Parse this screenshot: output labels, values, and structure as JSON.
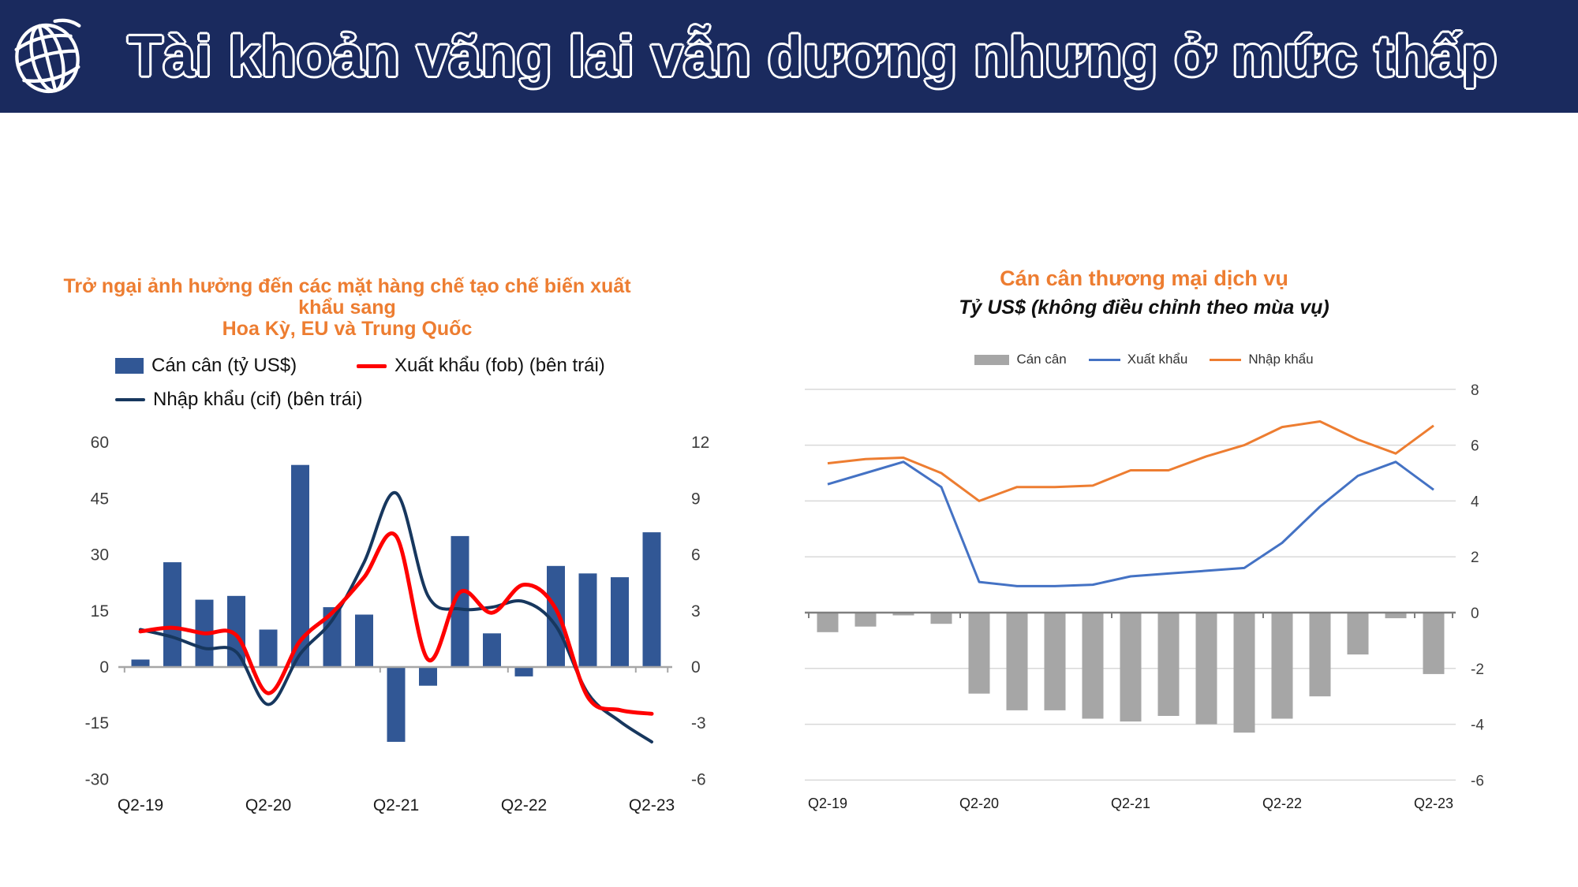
{
  "colors": {
    "banner_bg": "#1a2a5e",
    "title_orange": "#ed7d31",
    "axis_text": "#3d3d3d",
    "axis_line_left_chart": "#a6a6a6",
    "axis_line_right_chart": "#7f7f7f",
    "gridline": "#d9d9d9"
  },
  "header": {
    "title": "Tài khoản vãng lai vẫn dương nhưng ở mức thấp",
    "logo": "world-bank-globe-icon"
  },
  "chart_data": [
    {
      "id": "goods-trade",
      "type": "combo bar+smooth-line",
      "title_lines": [
        "Trở ngại ảnh hưởng đến các mặt hàng chế tạo chế biến xuất khẩu sang",
        "Hoa Kỳ, EU và Trung Quốc"
      ],
      "categories": [
        "Q2-19",
        "Q3-19",
        "Q4-19",
        "Q1-20",
        "Q2-20",
        "Q3-20",
        "Q4-20",
        "Q1-21",
        "Q2-21",
        "Q3-21",
        "Q4-21",
        "Q1-22",
        "Q2-22",
        "Q3-22",
        "Q4-22",
        "Q1-23",
        "Q2-23"
      ],
      "x_tick_labels": [
        "Q2-19",
        "Q2-20",
        "Q2-21",
        "Q2-22",
        "Q2-23"
      ],
      "left_axis": {
        "min": -30,
        "max": 60,
        "ticks": [
          60,
          45,
          30,
          15,
          0,
          -15,
          -30
        ]
      },
      "right_axis": {
        "min": -6,
        "max": 12,
        "ticks": [
          12,
          9,
          6,
          3,
          0,
          -3,
          -6
        ]
      },
      "grid": false,
      "legend_position": "top",
      "series": [
        {
          "name": "Cán cân (tỷ US$)",
          "type": "bar",
          "axis": "left",
          "color": "#315795",
          "values": [
            2,
            28,
            18,
            19,
            10,
            54,
            16,
            14,
            -20,
            -5,
            35,
            9,
            -2.5,
            27,
            25,
            24,
            36
          ]
        },
        {
          "name": "Xuất khẩu (fob) (bên trái)",
          "type": "line",
          "smooth": true,
          "axis": "left",
          "color": "#ff0000",
          "values": [
            9.5,
            10.5,
            9,
            8.5,
            -7,
            7,
            14.5,
            24,
            35,
            2,
            20,
            14.5,
            22,
            15.5,
            -8,
            -11.5,
            -12.5
          ]
        },
        {
          "name": "Nhập khẩu (cif) (bên trái)",
          "type": "line",
          "smooth": true,
          "axis": "left",
          "color": "#17375e",
          "values": [
            10,
            8,
            5,
            4,
            -10,
            3.5,
            12.5,
            28,
            46.5,
            19,
            15.5,
            16,
            17.5,
            11,
            -7,
            -14.5,
            -20
          ]
        }
      ]
    },
    {
      "id": "services-trade",
      "type": "combo bar+line",
      "title": "Cán cân thương mại dịch vụ",
      "subtitle": "Tỷ US$ (không điều chỉnh theo mùa vụ)",
      "categories": [
        "Q2-19",
        "Q3-19",
        "Q4-19",
        "Q1-20",
        "Q2-20",
        "Q3-20",
        "Q4-20",
        "Q1-21",
        "Q2-21",
        "Q3-21",
        "Q4-21",
        "Q1-22",
        "Q2-22",
        "Q3-22",
        "Q4-22",
        "Q1-23",
        "Q2-23"
      ],
      "x_tick_labels": [
        "Q2-19",
        "Q2-20",
        "Q2-21",
        "Q2-22",
        "Q2-23"
      ],
      "right_axis": {
        "min": -6,
        "max": 8,
        "ticks": [
          8,
          6,
          4,
          2,
          0,
          -2,
          -4,
          -6
        ]
      },
      "grid": true,
      "legend_position": "top",
      "series": [
        {
          "name": "Cán cân",
          "type": "bar",
          "color": "#a6a6a6",
          "values": [
            -0.7,
            -0.5,
            -0.1,
            -0.4,
            -2.9,
            -3.5,
            -3.5,
            -3.8,
            -3.9,
            -3.7,
            -4.0,
            -4.3,
            -3.8,
            -3.0,
            -1.5,
            -0.2,
            -2.2
          ]
        },
        {
          "name": "Xuất khẩu",
          "type": "line",
          "smooth": false,
          "color": "#4472c4",
          "values": [
            4.6,
            5.0,
            5.4,
            4.5,
            1.1,
            0.95,
            0.95,
            1.0,
            1.3,
            1.4,
            1.5,
            1.6,
            2.5,
            3.8,
            4.9,
            5.4,
            4.4
          ]
        },
        {
          "name": "Nhập khẩu",
          "type": "line",
          "smooth": false,
          "color": "#ed7d31",
          "values": [
            5.35,
            5.5,
            5.55,
            5.0,
            4.0,
            4.5,
            4.5,
            4.55,
            5.1,
            5.1,
            5.6,
            6.0,
            6.65,
            6.85,
            6.2,
            5.7,
            6.7
          ]
        }
      ]
    }
  ]
}
